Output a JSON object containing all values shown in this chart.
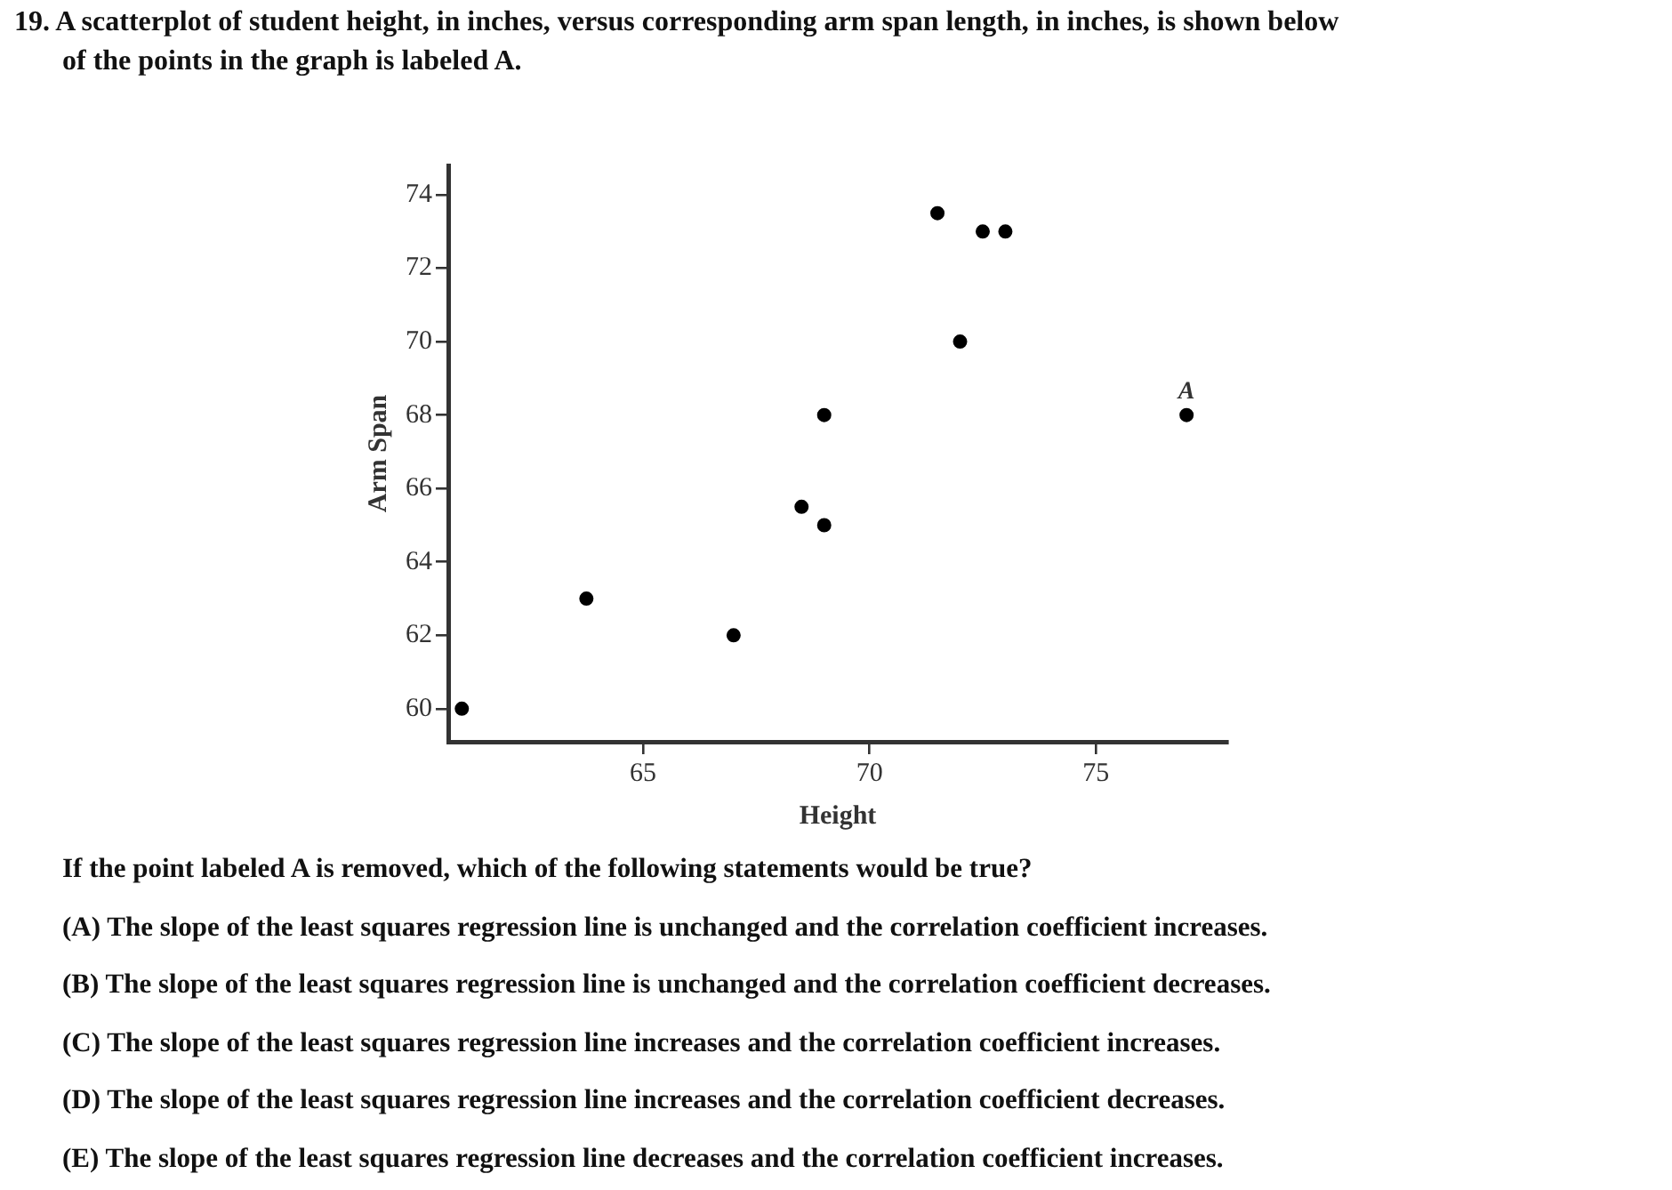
{
  "chart_data": {
    "type": "scatter",
    "title": "19. A scatterplot of student height, in inches, versus corresponding arm span length, in inches, is shown below",
    "subtitle": "of the points in the graph is labeled A.",
    "xlabel": "Height",
    "ylabel": "Arm Span",
    "x": [
      61,
      63.75,
      67,
      68.5,
      69,
      69,
      72,
      71.5,
      72.5,
      73,
      77
    ],
    "series": [
      {
        "color": "#000000",
        "values": [
          60,
          63,
          62,
          65.5,
          65,
          68,
          70,
          73.5,
          73,
          73,
          68
        ]
      }
    ],
    "xlim": [
      60.7,
      77.9
    ],
    "ylim": [
      59.1,
      74.8
    ],
    "xticks": [
      65,
      70,
      75
    ],
    "yticks": [
      60,
      62,
      64,
      66,
      68,
      70,
      72,
      74
    ],
    "grid": false,
    "legend": false,
    "marker": "circle",
    "annotations": [
      {
        "text": "A",
        "x": 77,
        "y": 68
      },
      "If the point labeled A is removed, which of the following statements would be true?",
      "(A) The slope of the least squares regression line is unchanged and the correlation coefficient increases.",
      "(B) The slope of the least squares regression line is unchanged and the correlation coefficient decreases.",
      "(C) The slope of the least squares regression line increases and the correlation coefficient increases.",
      "(D) The slope of the least squares regression line increases and the correlation coefficient decreases.",
      "(E) The slope of the least squares regression line decreases and the correlation coefficient increases."
    ]
  }
}
